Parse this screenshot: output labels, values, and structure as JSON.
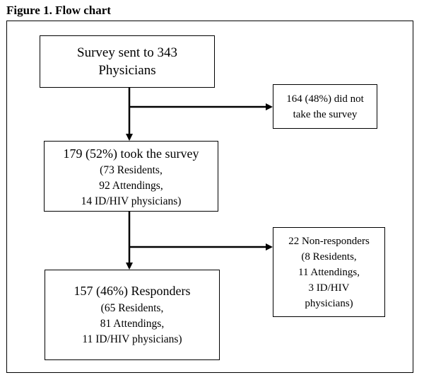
{
  "figure": {
    "title": "Figure 1. Flow chart"
  },
  "boxes": {
    "start": {
      "lines": [
        "Survey sent to 343",
        "Physicians"
      ]
    },
    "took_survey": {
      "heading": "179 (52%) took the survey",
      "lines": [
        "(73 Residents,",
        "92 Attendings,",
        "14 ID/HIV physicians)"
      ]
    },
    "did_not_take": {
      "lines": [
        "164 (48%) did not",
        "take the survey"
      ]
    },
    "responders": {
      "heading": "157 (46%) Responders",
      "lines": [
        "(65 Residents,",
        "81 Attendings,",
        "11 ID/HIV physicians)"
      ]
    },
    "non_responders": {
      "lines": [
        "22 Non-responders",
        "(8 Residents,",
        "11 Attendings,",
        "3 ID/HIV",
        "physicians)"
      ]
    }
  }
}
